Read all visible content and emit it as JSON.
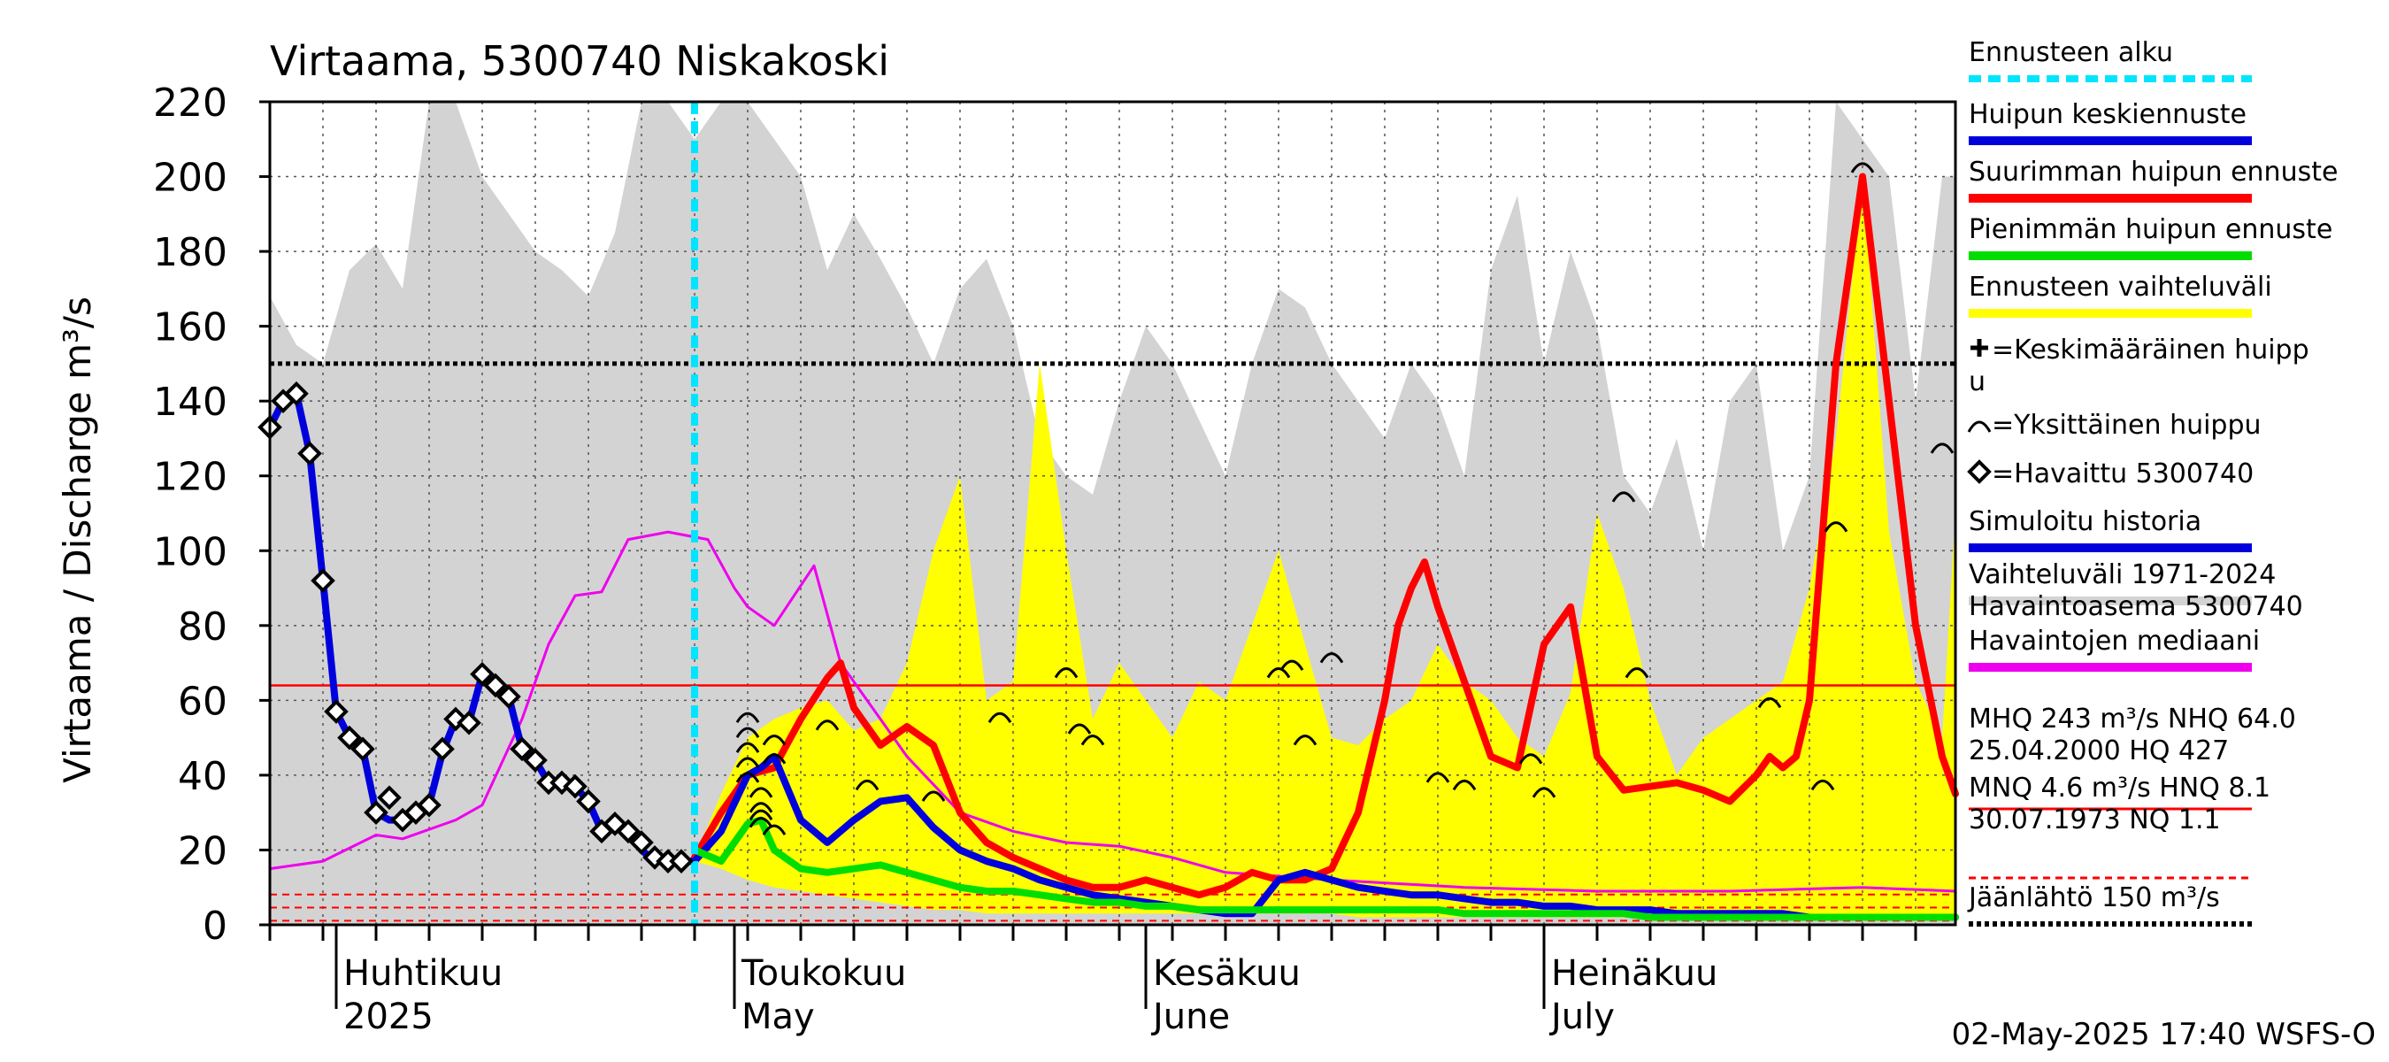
{
  "chart_data": {
    "type": "line",
    "title": "Virtaama, 5300740 Niskakoski",
    "ylabel": "Virtaama / Discharge   m³/s",
    "ylim": [
      0,
      220
    ],
    "yticks": [
      0,
      20,
      40,
      60,
      80,
      100,
      120,
      140,
      160,
      180,
      200,
      220
    ],
    "xlim": [
      0,
      127
    ],
    "x_unit": "days since 2025-03-27",
    "month_labels": [
      {
        "fi": "Huhtikuu",
        "en": "2025",
        "x": 5
      },
      {
        "fi": "Toukokuu",
        "en": "May",
        "x": 35
      },
      {
        "fi": "Kesäkuu",
        "en": "June",
        "x": 66
      },
      {
        "fi": "Heinäkuu",
        "en": "July",
        "x": 96
      }
    ],
    "month_ticks": [
      5,
      35,
      66,
      96
    ],
    "forecast_start": 32,
    "hlines": {
      "mean_peak": 150,
      "mhq_red": 64,
      "dashed_red": [
        8.1,
        4.6,
        1.1
      ]
    },
    "series": [
      {
        "name": "Vaihteluväli 1971-2024",
        "kind": "band",
        "color": "#d3d3d3",
        "x": [
          0,
          2,
          4,
          6,
          8,
          10,
          12,
          14,
          16,
          18,
          20,
          22,
          24,
          26,
          28,
          30,
          32,
          34,
          36,
          38,
          40,
          42,
          44,
          46,
          48,
          50,
          52,
          54,
          56,
          58,
          60,
          62,
          64,
          66,
          68,
          70,
          72,
          74,
          76,
          78,
          80,
          82,
          84,
          86,
          88,
          90,
          92,
          94,
          96,
          98,
          100,
          102,
          104,
          106,
          108,
          110,
          112,
          114,
          116,
          118,
          120,
          122,
          124,
          126,
          127
        ],
        "upper": [
          168,
          155,
          150,
          175,
          182,
          170,
          220,
          220,
          200,
          190,
          180,
          175,
          168,
          185,
          220,
          220,
          210,
          230,
          220,
          210,
          200,
          175,
          190,
          178,
          165,
          150,
          170,
          178,
          160,
          130,
          120,
          115,
          140,
          160,
          150,
          135,
          120,
          150,
          170,
          165,
          150,
          140,
          130,
          150,
          140,
          120,
          175,
          195,
          150,
          180,
          160,
          120,
          110,
          130,
          100,
          140,
          150,
          100,
          120,
          220,
          210,
          200,
          140,
          200,
          200
        ],
        "lower": [
          0,
          0,
          0,
          0,
          0,
          0,
          0,
          0,
          0,
          0,
          0,
          0,
          0,
          0,
          0,
          0,
          0,
          0,
          0,
          0,
          0,
          0,
          0,
          0,
          0,
          0,
          0,
          0,
          0,
          0,
          0,
          0,
          0,
          0,
          0,
          0,
          0,
          0,
          0,
          0,
          0,
          0,
          0,
          0,
          0,
          0,
          0,
          0,
          0,
          0,
          0,
          0,
          0,
          0,
          0,
          0,
          0,
          0,
          0,
          0,
          0,
          0,
          0,
          0,
          0
        ]
      },
      {
        "name": "Ennusteen vaihteluväli",
        "kind": "band",
        "color": "#ffff00",
        "x": [
          32,
          34,
          36,
          38,
          40,
          42,
          44,
          46,
          48,
          50,
          52,
          54,
          56,
          58,
          60,
          62,
          64,
          66,
          68,
          70,
          72,
          74,
          76,
          78,
          80,
          82,
          84,
          86,
          88,
          90,
          92,
          94,
          96,
          98,
          100,
          102,
          104,
          106,
          108,
          110,
          112,
          114,
          116,
          118,
          120,
          122,
          124,
          126,
          127
        ],
        "upper": [
          18,
          35,
          50,
          55,
          58,
          60,
          52,
          55,
          70,
          100,
          120,
          60,
          65,
          150,
          100,
          55,
          70,
          60,
          50,
          65,
          60,
          80,
          100,
          75,
          50,
          48,
          55,
          60,
          75,
          65,
          60,
          50,
          45,
          62,
          110,
          90,
          60,
          40,
          50,
          55,
          60,
          65,
          90,
          130,
          200,
          105,
          65,
          50,
          110
        ],
        "lower": [
          17,
          15,
          12,
          10,
          9,
          8,
          7,
          6,
          5,
          4,
          4,
          3,
          3,
          3,
          3,
          3,
          3,
          3,
          3,
          3,
          3,
          3,
          3,
          3,
          3,
          2,
          2,
          2,
          2,
          2,
          2,
          2,
          2,
          2,
          2,
          2,
          2,
          2,
          2,
          2,
          2,
          2,
          2,
          2,
          2,
          2,
          2,
          2,
          2
        ]
      },
      {
        "name": "Havaintojen mediaani",
        "color": "#ee00ee",
        "width": 3,
        "x": [
          0,
          4,
          8,
          10,
          14,
          16,
          19,
          21,
          23,
          25,
          27,
          30,
          33,
          35,
          36,
          38,
          41,
          43,
          45,
          48,
          52,
          56,
          60,
          64,
          68,
          72,
          80,
          90,
          100,
          110,
          120,
          127
        ],
        "y": [
          15,
          17,
          24,
          23,
          28,
          32,
          55,
          75,
          88,
          89,
          103,
          105,
          103,
          90,
          85,
          80,
          96,
          70,
          60,
          45,
          30,
          25,
          22,
          21,
          18,
          14,
          12,
          10,
          9,
          9,
          10,
          9
        ]
      },
      {
        "name": "Suurimman huipun ennuste",
        "color": "#ff0000",
        "width": 8,
        "x": [
          32,
          34,
          36,
          38,
          40,
          42,
          43,
          44,
          46,
          48,
          50,
          52,
          54,
          56,
          58,
          60,
          62,
          64,
          66,
          68,
          70,
          72,
          74,
          76,
          78,
          80,
          82,
          84,
          85,
          86,
          87,
          88,
          90,
          92,
          94,
          96,
          98,
          100,
          102,
          104,
          106,
          108,
          110,
          112,
          113,
          114,
          115,
          116,
          118,
          120,
          122,
          124,
          126,
          127
        ],
        "y": [
          18,
          30,
          40,
          42,
          55,
          66,
          70,
          58,
          48,
          53,
          48,
          30,
          22,
          18,
          15,
          12,
          10,
          10,
          12,
          10,
          8,
          10,
          14,
          12,
          12,
          15,
          30,
          60,
          80,
          90,
          97,
          85,
          65,
          45,
          42,
          75,
          85,
          45,
          36,
          37,
          38,
          36,
          33,
          40,
          45,
          42,
          45,
          60,
          150,
          200,
          140,
          80,
          45,
          35
        ]
      },
      {
        "name": "Huipun keskiennuste",
        "color": "#0000dd",
        "width": 8,
        "x": [
          32,
          34,
          36,
          37,
          38,
          40,
          42,
          44,
          46,
          48,
          50,
          52,
          54,
          56,
          58,
          60,
          62,
          64,
          66,
          68,
          70,
          72,
          74,
          76,
          78,
          80,
          82,
          84,
          86,
          88,
          90,
          92,
          94,
          96,
          98,
          100,
          102,
          104,
          106,
          108,
          110,
          112,
          114,
          116,
          118,
          120,
          122,
          124,
          126,
          127
        ],
        "y": [
          17,
          25,
          40,
          42,
          45,
          28,
          22,
          28,
          33,
          34,
          26,
          20,
          17,
          15,
          12,
          10,
          8,
          7,
          6,
          5,
          4,
          3,
          3,
          12,
          14,
          12,
          10,
          9,
          8,
          8,
          7,
          6,
          6,
          5,
          5,
          4,
          4,
          4,
          3,
          3,
          3,
          3,
          3,
          2,
          2,
          2,
          2,
          2,
          2,
          2
        ]
      },
      {
        "name": "Pienimmän huipun ennuste",
        "color": "#00dd00",
        "width": 8,
        "x": [
          32,
          34,
          36,
          37,
          38,
          40,
          42,
          44,
          46,
          48,
          50,
          52,
          54,
          56,
          58,
          60,
          62,
          64,
          66,
          68,
          70,
          72,
          74,
          76,
          78,
          80,
          82,
          84,
          86,
          88,
          90,
          92,
          94,
          96,
          98,
          100,
          102,
          104,
          106,
          108,
          110,
          112,
          114,
          116,
          118,
          120,
          122,
          124,
          126,
          127
        ],
        "y": [
          20,
          17,
          27,
          28,
          20,
          15,
          14,
          15,
          16,
          14,
          12,
          10,
          9,
          9,
          8,
          7,
          6,
          6,
          5,
          5,
          4,
          4,
          4,
          4,
          4,
          4,
          4,
          4,
          4,
          4,
          3,
          3,
          3,
          3,
          3,
          3,
          3,
          2,
          2,
          2,
          2,
          2,
          2,
          2,
          2,
          2,
          2,
          2,
          2,
          2
        ]
      },
      {
        "name": "Simuloitu historia",
        "color": "#0000dd",
        "width": 8,
        "x": [
          0,
          1,
          2,
          3,
          4,
          5,
          6,
          7,
          8,
          9,
          10,
          11,
          12,
          13,
          14,
          15,
          16,
          17,
          18,
          19,
          20,
          21,
          22,
          23,
          24,
          25,
          26,
          27,
          28,
          29,
          30,
          31,
          32
        ],
        "y": [
          133,
          140,
          142,
          126,
          92,
          57,
          50,
          47,
          30,
          28,
          28,
          30,
          32,
          46,
          55,
          54,
          67,
          64,
          61,
          47,
          44,
          38,
          38,
          37,
          33,
          25,
          26,
          25,
          20,
          17,
          17,
          17,
          17
        ]
      },
      {
        "name": "Havaittu 5300740",
        "kind": "markers",
        "marker": "diamond",
        "x": [
          0,
          1,
          2,
          3,
          4,
          5,
          6,
          7,
          8,
          9,
          10,
          11,
          12,
          13,
          14,
          15,
          16,
          17,
          18,
          19,
          20,
          21,
          22,
          23,
          24,
          25,
          26,
          27,
          28,
          29,
          30,
          31
        ],
        "y": [
          133,
          140,
          142,
          126,
          92,
          57,
          50,
          47,
          30,
          34,
          28,
          30,
          32,
          47,
          55,
          54,
          67,
          64,
          61,
          47,
          44,
          38,
          38,
          37,
          33,
          25,
          27,
          25,
          22,
          18,
          17,
          17
        ]
      },
      {
        "name": "Yksittäinen huippu",
        "kind": "markers",
        "marker": "arc",
        "x": [
          36,
          36,
          36,
          36,
          36,
          37,
          37,
          37,
          37,
          38,
          38,
          38,
          42,
          45,
          50,
          55,
          60,
          61,
          62,
          76,
          77,
          78,
          80,
          88,
          90,
          95,
          96,
          102,
          103,
          113,
          117,
          118,
          120,
          126
        ],
        "y": [
          56,
          52,
          48,
          44,
          40,
          36,
          32,
          30,
          28,
          50,
          45,
          26,
          54,
          38,
          35,
          56,
          68,
          53,
          50,
          68,
          70,
          50,
          72,
          40,
          38,
          45,
          36,
          115,
          68,
          60,
          38,
          107,
          203,
          128
        ]
      }
    ],
    "legend": [
      {
        "label": "Ennusteen alku",
        "color": "#00e5ff",
        "style": "dashed"
      },
      {
        "label": "Huipun keskiennuste",
        "color": "#0000dd",
        "style": "solid"
      },
      {
        "label": "Suurimman huipun ennuste",
        "color": "#ff0000",
        "style": "solid"
      },
      {
        "label": "Pienimmän huipun ennuste",
        "color": "#00dd00",
        "style": "solid"
      },
      {
        "label": "Ennusteen vaihteluväli",
        "color": "#ffff00",
        "style": "solid"
      },
      {
        "label": "=Keskimääräinen huipp",
        "label2": "u",
        "color": "#000000",
        "style": "plus"
      },
      {
        "label": "=Yksittäinen huippu",
        "color": "#000000",
        "style": "arc"
      },
      {
        "label": "=Havaittu 5300740",
        "color": "#000000",
        "style": "diamond"
      },
      {
        "label": "Simuloitu historia",
        "color": "#0000dd",
        "style": "solid"
      },
      {
        "label": "Vaihteluväli 1971-2024",
        "label2": " Havaintoasema 5300740",
        "color": "#d3d3d3",
        "style": "solid"
      },
      {
        "label": "Havaintojen mediaani",
        "color": "#ee00ee",
        "style": "solid"
      },
      {
        "label": "MHQ  243 m³/s NHQ 64.0",
        "label2": "25.04.2000 HQ  427",
        "color": "#ff0000",
        "style": "thin"
      },
      {
        "label": "MNQ  4.6 m³/s HNQ  8.1",
        "label2": "30.07.1973 NQ  1.1",
        "color": "#ff0000",
        "style": "dashed-thin"
      },
      {
        "label": "Jäänlähtö 150 m³/s",
        "color": "#000000",
        "style": "dotted"
      }
    ],
    "footer": "02-May-2025 17:40 WSFS-O"
  }
}
